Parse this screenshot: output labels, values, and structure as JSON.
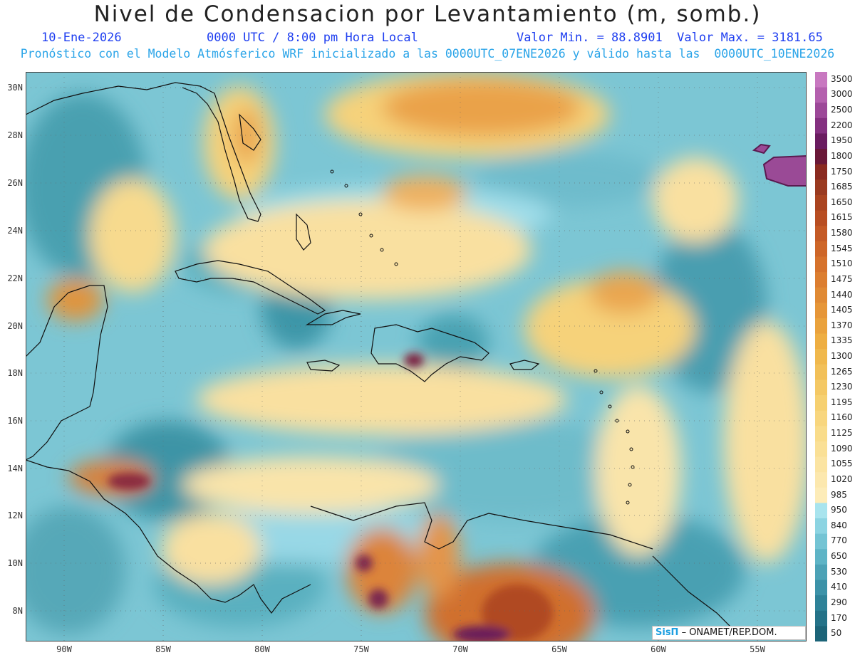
{
  "title": "Nivel de Condensacion por Levantamiento (m, somb.)",
  "date": "10-Ene-2026",
  "time": "0000 UTC / 8:00 pm Hora Local",
  "valores": "Valor Min. = 88.8901  Valor Max. = 3181.65",
  "description": "Pronóstico con el Modelo Atmósferico WRF inicializado a las 0000UTC_07ENE2026 y válido hasta las  0000UTC_10ENE2026",
  "lat_labels": [
    "30N",
    "28N",
    "26N",
    "24N",
    "22N",
    "20N",
    "18N",
    "16N",
    "14N",
    "12N",
    "10N",
    "8N"
  ],
  "lon_labels": [
    "90W",
    "85W",
    "80W",
    "75W",
    "70W",
    "65W",
    "60W",
    "55W"
  ],
  "colorbar": {
    "labels": [
      "3500",
      "3000",
      "2500",
      "2200",
      "1950",
      "1800",
      "1750",
      "1685",
      "1650",
      "1615",
      "1580",
      "1545",
      "1510",
      "1475",
      "1440",
      "1405",
      "1370",
      "1335",
      "1300",
      "1265",
      "1230",
      "1195",
      "1160",
      "1125",
      "1090",
      "1055",
      "1020",
      "985",
      "950",
      "840",
      "770",
      "650",
      "530",
      "410",
      "290",
      "170",
      "50"
    ],
    "colors": [
      "#c878c0",
      "#b460ae",
      "#9c4898",
      "#843080",
      "#6a1c60",
      "#6a1838",
      "#8a2a20",
      "#9a3a20",
      "#aa4420",
      "#b84e22",
      "#c45a26",
      "#ce6628",
      "#d6722c",
      "#dc7e30",
      "#e08a34",
      "#e69638",
      "#eaa23c",
      "#eeae42",
      "#f0b84c",
      "#f2c058",
      "#f4c864",
      "#f6d070",
      "#f8d67e",
      "#f9dc8a",
      "#fae096",
      "#fbe4a2",
      "#fce8ae",
      "#fdecb8",
      "#a8e4ee",
      "#8cd4e2",
      "#74c4d4",
      "#5eb4c6",
      "#4ca2b6",
      "#3c92a8",
      "#2e8298",
      "#247288",
      "#1c6478"
    ]
  },
  "credit": {
    "logo": "SisΠ",
    "text": " – ONAMET/REP.DOM."
  },
  "icons": {
    "logo": "sispi-logo"
  }
}
